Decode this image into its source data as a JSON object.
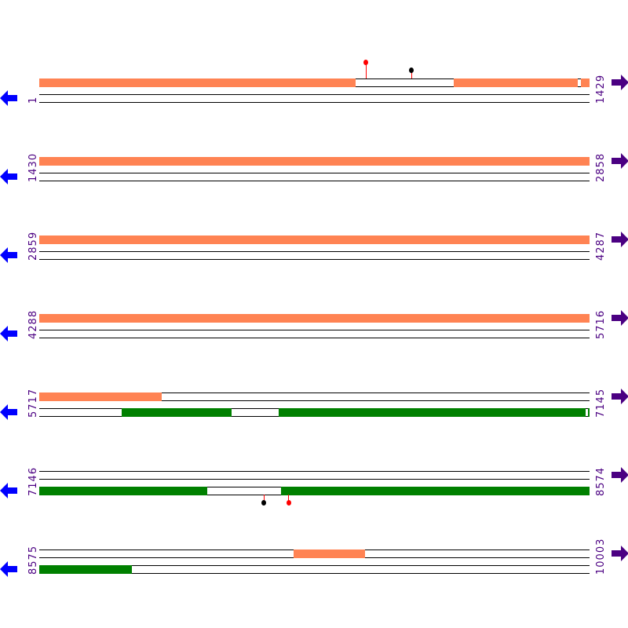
{
  "colors": {
    "orange": "#ff8353",
    "green": "#008000",
    "red": "#ff0000",
    "black": "#000000",
    "left_arrow": "#0000ff",
    "right_arrow": "#4b0082",
    "label": "#4b0082"
  },
  "icons": {
    "left": "arrow-left-icon",
    "right": "arrow-right-icon"
  },
  "rows": [
    {
      "start": "1",
      "end": "1429",
      "s": 1,
      "e": 1429,
      "top": [
        {
          "from": 1,
          "to": 822,
          "color": "orange"
        },
        {
          "from": 1078,
          "to": 1399,
          "color": "orange"
        },
        {
          "from": 1407,
          "to": 1429,
          "color": "orange"
        }
      ],
      "bottom": [],
      "pins": [
        {
          "pos": 849,
          "color": "red",
          "side": "up",
          "len": 20
        },
        {
          "pos": 967,
          "color": "black",
          "side": "up",
          "len": 10
        }
      ]
    },
    {
      "start": "1430",
      "end": "2858",
      "s": 1430,
      "e": 2858,
      "top": [
        {
          "from": 1430,
          "to": 2858,
          "color": "orange"
        }
      ],
      "bottom": [],
      "pins": []
    },
    {
      "start": "2859",
      "end": "4287",
      "s": 2859,
      "e": 4287,
      "top": [
        {
          "from": 2859,
          "to": 4287,
          "color": "orange"
        }
      ],
      "bottom": [],
      "pins": []
    },
    {
      "start": "4288",
      "end": "5716",
      "s": 4288,
      "e": 5716,
      "top": [
        {
          "from": 4288,
          "to": 5716,
          "color": "orange"
        }
      ],
      "bottom": [],
      "pins": []
    },
    {
      "start": "5717",
      "end": "7145",
      "s": 5717,
      "e": 7145,
      "top": [
        {
          "from": 5717,
          "to": 6035,
          "color": "orange"
        }
      ],
      "bottom": [
        {
          "from": 5931,
          "to": 6215,
          "color": "green"
        },
        {
          "from": 6339,
          "to": 7134,
          "color": "green"
        },
        {
          "from": 7141,
          "to": 7145,
          "color": "green"
        }
      ],
      "pins": []
    },
    {
      "start": "7146",
      "end": "8574",
      "s": 7146,
      "e": 8574,
      "top": [],
      "bottom": [
        {
          "from": 7146,
          "to": 7581,
          "color": "green"
        },
        {
          "from": 7774,
          "to": 8574,
          "color": "green"
        }
      ],
      "pins": [
        {
          "pos": 7729,
          "color": "black",
          "side": "down",
          "len": 10
        },
        {
          "pos": 7793,
          "color": "red",
          "side": "down",
          "len": 10
        }
      ]
    },
    {
      "start": "8575",
      "end": "10003",
      "s": 8575,
      "e": 10003,
      "top": [
        {
          "from": 9236,
          "to": 9420,
          "color": "orange"
        }
      ],
      "bottom": [
        {
          "from": 8575,
          "to": 8814,
          "color": "green"
        }
      ],
      "pins": []
    }
  ]
}
